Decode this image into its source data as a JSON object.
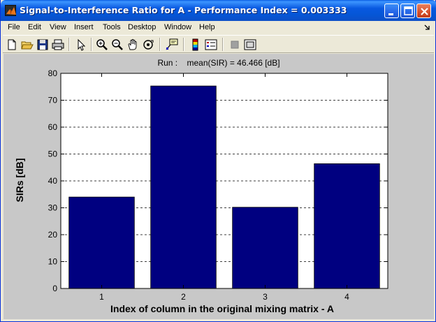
{
  "window": {
    "title": "Signal-to-Interference Ratio for A - Performance Index = 0.003333"
  },
  "menu": {
    "items": [
      "File",
      "Edit",
      "View",
      "Insert",
      "Tools",
      "Desktop",
      "Window",
      "Help"
    ]
  },
  "toolbar": {
    "tools": [
      "new-file-icon",
      "open-folder-icon",
      "save-icon",
      "print-icon",
      "pointer-icon",
      "zoom-in-icon",
      "zoom-out-icon",
      "pan-hand-icon",
      "rotate-3d-icon",
      "data-cursor-icon",
      "colorbar-icon",
      "legend-icon",
      "hide-plot-tools-icon",
      "show-plot-tools-icon"
    ]
  },
  "colors": {
    "bar": "#000080",
    "plot_background": "#FFFFFF",
    "figure_background": "#C8C8C8"
  },
  "chart_data": {
    "type": "bar",
    "title": "Run :    mean(SIR) = 46.466 [dB]",
    "xlabel": "Index of column in the original mixing matrix - A",
    "ylabel": "SIRs [dB]",
    "categories": [
      "1",
      "2",
      "3",
      "4"
    ],
    "values": [
      34.0,
      75.3,
      30.2,
      46.4
    ],
    "ylim": [
      0,
      80
    ],
    "yticks": [
      "0",
      "10",
      "20",
      "30",
      "40",
      "50",
      "60",
      "70",
      "80"
    ],
    "grid": "y-dashed"
  }
}
